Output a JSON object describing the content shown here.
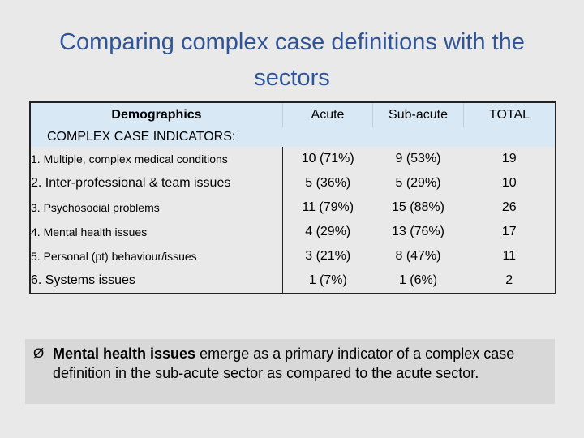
{
  "title": "Comparing complex case definitions with the sectors",
  "table": {
    "headers": [
      "Demographics",
      "Acute",
      "Sub-acute",
      "TOTAL"
    ],
    "subheader": "COMPLEX CASE INDICATORS:",
    "rows": [
      {
        "label": "1. Multiple, complex medical conditions",
        "acute": "10 (71%)",
        "subacute": "9 (53%)",
        "total": "19"
      },
      {
        "label": "2. Inter-professional & team issues",
        "acute": "5 (36%)",
        "subacute": "5 (29%)",
        "total": "10"
      },
      {
        "label": "3. Psychosocial problems",
        "acute": "11 (79%)",
        "subacute": "15 (88%)",
        "total": "26"
      },
      {
        "label": "4. Mental health issues",
        "acute": "4 (29%)",
        "subacute": "13 (76%)",
        "total": "17"
      },
      {
        "label": "5. Personal (pt) behaviour/issues",
        "acute": "3 (21%)",
        "subacute": "8 (47%)",
        "total": "11"
      },
      {
        "label": "6. Systems issues",
        "acute": "1 (7%)",
        "subacute": "1 (6%)",
        "total": "2"
      }
    ]
  },
  "note": {
    "bullet": "Ø",
    "bold": "Mental health issues",
    "rest": " emerge as a primary indicator of a complex case definition in the sub-acute sector as compared to the acute sector."
  }
}
